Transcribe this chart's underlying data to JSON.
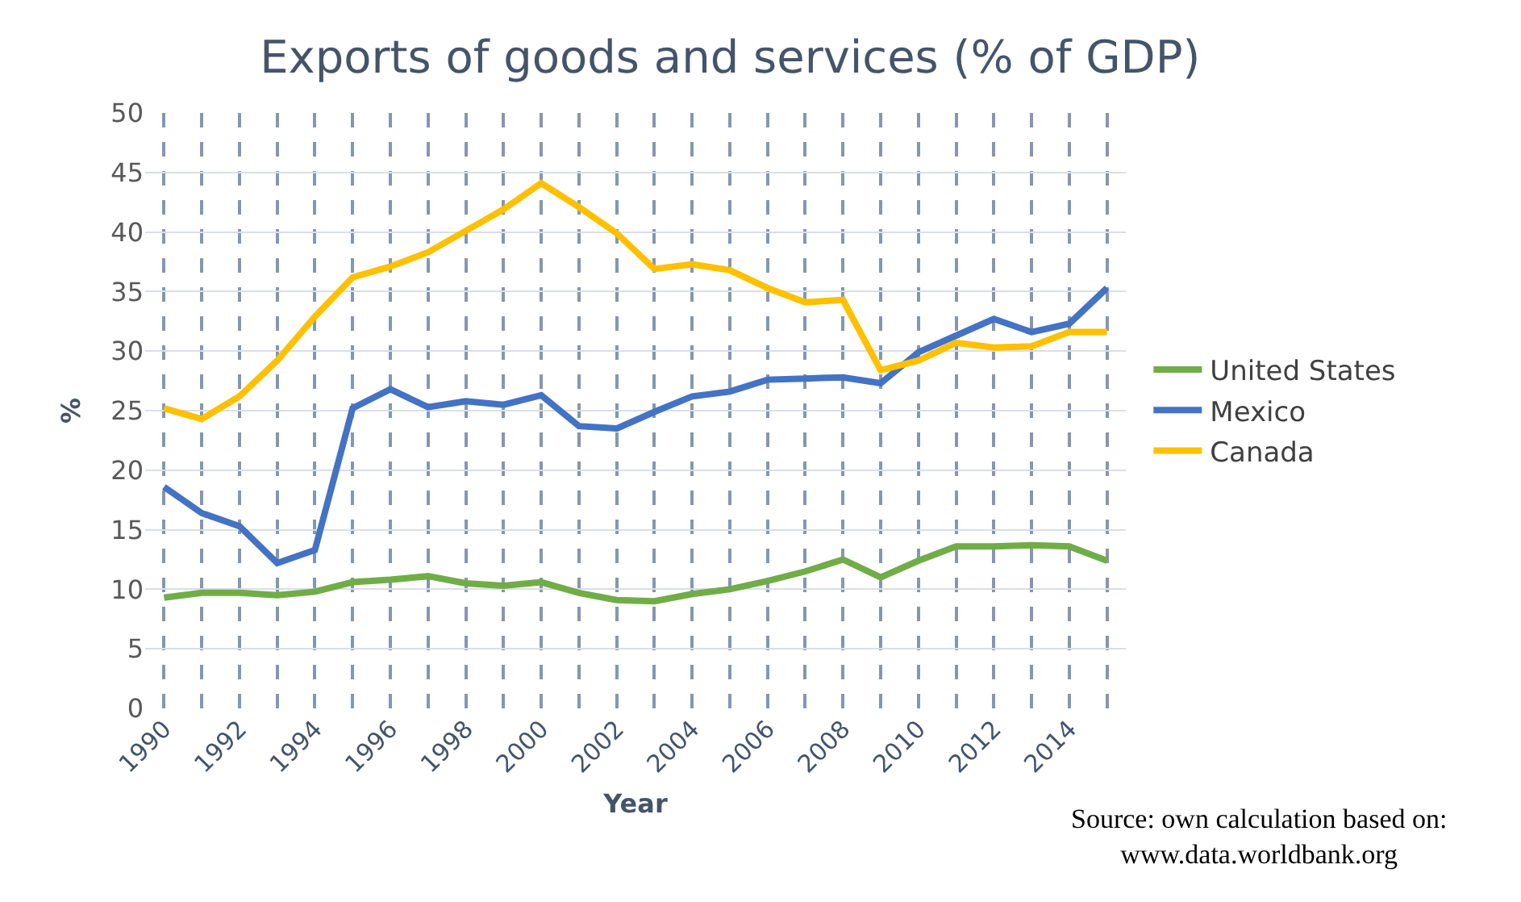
{
  "chart_data": {
    "type": "line",
    "title": "Exports of goods and services (% of GDP)",
    "xlabel": "Year",
    "ylabel": "%",
    "x": [
      1990,
      1991,
      1992,
      1993,
      1994,
      1995,
      1996,
      1997,
      1998,
      1999,
      2000,
      2001,
      2002,
      2003,
      2004,
      2005,
      2006,
      2007,
      2008,
      2009,
      2010,
      2011,
      2012,
      2013,
      2014,
      2015
    ],
    "series": [
      {
        "name": "United States",
        "color": "#70ad47",
        "values": [
          9.3,
          9.7,
          9.7,
          9.5,
          9.8,
          10.6,
          10.8,
          11.1,
          10.5,
          10.3,
          10.6,
          9.7,
          9.1,
          9.0,
          9.6,
          10.0,
          10.7,
          11.5,
          12.5,
          11.0,
          12.4,
          13.6,
          13.6,
          13.7,
          13.6,
          12.4
        ]
      },
      {
        "name": "Mexico",
        "color": "#4472c4",
        "values": [
          18.6,
          16.4,
          15.3,
          12.2,
          13.3,
          25.2,
          26.8,
          25.3,
          25.8,
          25.5,
          26.3,
          23.7,
          23.5,
          24.9,
          26.2,
          26.6,
          27.6,
          27.7,
          27.8,
          27.3,
          29.9,
          31.3,
          32.7,
          31.6,
          32.3,
          35.3
        ]
      },
      {
        "name": "Canada",
        "color": "#ffc000",
        "values": [
          25.2,
          24.3,
          26.2,
          29.2,
          32.9,
          36.2,
          37.1,
          38.3,
          40.1,
          41.9,
          44.1,
          42.1,
          39.9,
          36.9,
          37.3,
          36.8,
          35.3,
          34.1,
          34.3,
          28.4,
          29.2,
          30.7,
          30.3,
          30.4,
          31.6,
          31.6
        ]
      }
    ],
    "xlim": [
      1989.5,
      2015.5
    ],
    "xticks": [
      1990,
      1992,
      1994,
      1996,
      1998,
      2000,
      2002,
      2004,
      2006,
      2008,
      2010,
      2012,
      2014
    ],
    "ylim": [
      0,
      50
    ],
    "yticks": [
      0,
      5,
      10,
      15,
      20,
      25,
      30,
      35,
      40,
      45,
      50
    ],
    "grid": true,
    "legend": "right",
    "marker": "none",
    "line_style": "solid",
    "annotations": [
      "Source: own calculation based on:\nwww.data.worldbank.org"
    ]
  }
}
